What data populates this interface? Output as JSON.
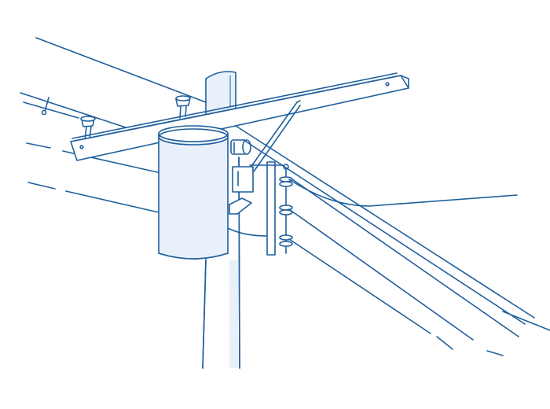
{
  "colors": {
    "line": "#1f5f9e",
    "fill": "#e8f1fa",
    "background": "#ffffff"
  }
}
